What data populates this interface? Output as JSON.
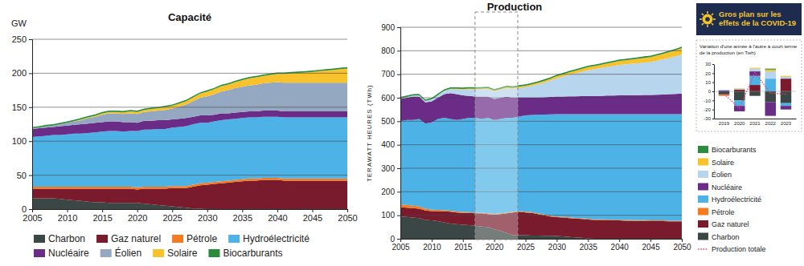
{
  "chart_data": [
    {
      "type": "area",
      "stacked": true,
      "title": "Capacité",
      "ylabel": "GW",
      "x": [
        2005,
        2006,
        2007,
        2008,
        2009,
        2010,
        2011,
        2012,
        2013,
        2014,
        2015,
        2016,
        2017,
        2018,
        2019,
        2020,
        2021,
        2022,
        2023,
        2024,
        2025,
        2026,
        2027,
        2028,
        2029,
        2030,
        2031,
        2032,
        2033,
        2034,
        2035,
        2036,
        2037,
        2038,
        2039,
        2040,
        2041,
        2042,
        2043,
        2044,
        2045,
        2046,
        2047,
        2048,
        2049,
        2050
      ],
      "xlim": [
        2005,
        2050
      ],
      "xticks": [
        2005,
        2010,
        2015,
        2020,
        2025,
        2030,
        2035,
        2040,
        2045,
        2050
      ],
      "ylim": [
        0,
        250
      ],
      "yticks": [
        0,
        50,
        100,
        150,
        200,
        250
      ],
      "grid": true,
      "legend": "bottom",
      "series": [
        {
          "name": "Charbon",
          "color": "#3b4744",
          "values": [
            16,
            16,
            16,
            16,
            15,
            14,
            13,
            12,
            11,
            10,
            10,
            9,
            9,
            9,
            9,
            9,
            8,
            7,
            6,
            5,
            4,
            3,
            2,
            1,
            0.5,
            0,
            0,
            0,
            0,
            0,
            0,
            0,
            0,
            0,
            0,
            0,
            0,
            0,
            0,
            0,
            0,
            0,
            0,
            0,
            0,
            0
          ]
        },
        {
          "name": "Gaz naturel",
          "color": "#7a1b2d",
          "values": [
            14,
            14,
            14,
            14,
            15,
            16,
            17,
            18,
            19,
            20,
            20,
            21,
            21,
            21,
            21,
            20,
            22,
            23,
            24,
            25,
            27,
            28,
            29,
            32,
            34.5,
            36,
            37,
            38,
            39,
            40,
            41,
            42,
            42,
            43,
            43,
            43,
            42,
            42,
            42,
            42,
            42,
            42,
            42,
            42,
            42,
            42
          ]
        },
        {
          "name": "Pétrole",
          "color": "#f47b20",
          "values": [
            3,
            3,
            3,
            3,
            3,
            3,
            3,
            3,
            3,
            3,
            3,
            3,
            3,
            3,
            3,
            3,
            3,
            3,
            3,
            3,
            3,
            3,
            3,
            3,
            3,
            3,
            3,
            3,
            3,
            3,
            3,
            3,
            3,
            3,
            3,
            3,
            3,
            3,
            3,
            3,
            3,
            3,
            3,
            3,
            3,
            3
          ]
        },
        {
          "name": "Hydroélectricité",
          "color": "#4db3e6",
          "values": [
            73,
            74,
            75,
            76,
            76,
            77,
            78,
            78,
            79,
            80,
            81,
            82,
            82,
            81,
            82,
            83,
            84,
            84,
            85,
            85,
            86,
            87,
            88,
            89,
            89,
            88,
            89,
            90,
            90,
            90,
            90,
            90,
            90,
            90,
            90,
            90,
            90,
            90,
            90,
            90,
            90,
            90,
            90,
            90,
            90,
            90
          ]
        },
        {
          "name": "Nucléaire",
          "color": "#6a2c87",
          "values": [
            12,
            12,
            12,
            12,
            13,
            13,
            13,
            14,
            14,
            14,
            14,
            14,
            14,
            14,
            13,
            12,
            13,
            13,
            13,
            13,
            12,
            12,
            12,
            11,
            11,
            11,
            10,
            10,
            9,
            9,
            9,
            9,
            9,
            9,
            9,
            9,
            9,
            9,
            9,
            9,
            9,
            9,
            9,
            9,
            9,
            9
          ]
        },
        {
          "name": "Éolien",
          "color": "#95a8c2",
          "values": [
            1,
            1,
            2,
            2,
            3,
            4,
            5,
            6,
            8,
            9,
            11,
            12,
            12,
            12,
            13,
            13,
            13,
            14,
            14,
            15,
            16,
            18,
            20,
            23,
            26,
            28,
            30,
            32,
            34,
            36,
            37,
            38,
            39,
            40,
            41,
            42,
            42,
            42,
            42,
            42,
            42,
            42,
            42,
            42,
            42,
            42
          ]
        },
        {
          "name": "Solaire",
          "color": "#f8c22d",
          "values": [
            0,
            0,
            0,
            0,
            0,
            0,
            0.5,
            1,
            1,
            1.5,
            2,
            2,
            2,
            2.5,
            3,
            3,
            3,
            3.5,
            3.5,
            4,
            4,
            4.5,
            5,
            5.5,
            6,
            7,
            7.5,
            8,
            8.5,
            9,
            10,
            10.5,
            11,
            11,
            11.5,
            12,
            13,
            14,
            14.5,
            15,
            16,
            17,
            18,
            19,
            20,
            21
          ]
        },
        {
          "name": "Biocarburants",
          "color": "#2b8c3c",
          "values": [
            2,
            2,
            2,
            2,
            2,
            2,
            2,
            2,
            2,
            2,
            2,
            2,
            2,
            2,
            2,
            2,
            2,
            2,
            2,
            2,
            2,
            2,
            2,
            2,
            2,
            2,
            2,
            2,
            2,
            2,
            2,
            2,
            2,
            2,
            2,
            2,
            2,
            2,
            2,
            2,
            2,
            2,
            2,
            2,
            2,
            2
          ]
        }
      ]
    },
    {
      "type": "area",
      "stacked": true,
      "title": "Production",
      "ylabel": "TERAWATT HEURES (TWh)",
      "x": [
        2005,
        2006,
        2007,
        2008,
        2009,
        2010,
        2011,
        2012,
        2013,
        2014,
        2015,
        2016,
        2017,
        2018,
        2019,
        2020,
        2021,
        2022,
        2023,
        2024,
        2025,
        2026,
        2027,
        2028,
        2029,
        2030,
        2031,
        2032,
        2033,
        2034,
        2035,
        2036,
        2037,
        2038,
        2039,
        2040,
        2041,
        2042,
        2043,
        2044,
        2045,
        2046,
        2047,
        2048,
        2049,
        2050
      ],
      "xlim": [
        2005,
        2050
      ],
      "xticks": [
        2005,
        2010,
        2015,
        2020,
        2025,
        2030,
        2035,
        2040,
        2045,
        2050
      ],
      "ylim": [
        0,
        900
      ],
      "yticks": [
        0,
        100,
        200,
        300,
        400,
        500,
        600,
        700,
        800,
        900
      ],
      "grid": true,
      "legend": "right",
      "series": [
        {
          "name": "Charbon",
          "color": "#3b4744",
          "values": [
            95,
            93,
            90,
            88,
            80,
            78,
            75,
            70,
            65,
            62,
            60,
            58,
            55,
            52,
            50,
            40,
            35,
            25,
            15,
            15,
            15,
            14,
            14,
            13,
            13,
            12,
            10,
            8,
            6,
            4,
            2,
            0,
            0,
            0,
            0,
            0,
            0,
            0,
            0,
            0,
            0,
            0,
            0,
            0,
            0,
            0
          ]
        },
        {
          "name": "Gaz naturel",
          "color": "#7a1b2d",
          "values": [
            40,
            39,
            40,
            40,
            40,
            40,
            43,
            47,
            50,
            50,
            50,
            52,
            53,
            56,
            55,
            63,
            70,
            83,
            97,
            100,
            97,
            96,
            91,
            87,
            82,
            80,
            80,
            80,
            80,
            80,
            80,
            80,
            80,
            79,
            78,
            78,
            77,
            77,
            76,
            76,
            75,
            75,
            75,
            74,
            74,
            74
          ]
        },
        {
          "name": "Pétrole",
          "color": "#f47b20",
          "values": [
            12,
            12,
            11,
            10,
            8,
            6,
            5,
            5,
            4,
            4,
            4,
            3,
            3,
            3,
            3,
            3,
            3,
            3,
            3,
            3,
            3,
            3,
            3,
            3,
            3,
            3,
            3,
            3,
            3,
            3,
            3,
            3,
            3,
            3,
            3,
            3,
            3,
            3,
            3,
            3,
            3,
            3,
            3,
            3,
            3,
            3
          ]
        },
        {
          "name": "Hydroélectricité",
          "color": "#4db3e6",
          "values": [
            353,
            361,
            364,
            372,
            362,
            371,
            387,
            393,
            391,
            389,
            396,
            402,
            404,
            399,
            407,
            399,
            402,
            404,
            400,
            402,
            410,
            414,
            420,
            425,
            431,
            435,
            437,
            439,
            441,
            443,
            445,
            447,
            447,
            448,
            449,
            449,
            450,
            450,
            451,
            451,
            452,
            452,
            452,
            453,
            453,
            453
          ]
        },
        {
          "name": "Nucléaire",
          "color": "#6a2c87",
          "values": [
            95,
            95,
            100,
            95,
            90,
            90,
            90,
            100,
            110,
            110,
            100,
            93,
            90,
            95,
            90,
            90,
            90,
            90,
            85,
            80,
            75,
            73,
            73,
            74,
            74,
            75,
            75,
            76,
            76,
            77,
            77,
            78,
            78,
            79,
            79,
            80,
            80,
            81,
            81,
            82,
            82,
            83,
            84,
            85,
            86,
            88
          ]
        },
        {
          "name": "Éolien",
          "color": "#b8d5ee",
          "values": [
            2,
            3,
            4,
            5,
            6,
            8,
            11,
            14,
            17,
            21,
            25,
            28,
            30,
            31,
            32,
            32,
            33,
            35,
            38,
            42,
            45,
            50,
            56,
            62,
            70,
            78,
            85,
            92,
            98,
            104,
            110,
            114,
            118,
            122,
            126,
            130,
            132,
            134,
            136,
            138,
            140,
            145,
            150,
            155,
            160,
            165
          ]
        },
        {
          "name": "Solaire",
          "color": "#f8c22d",
          "values": [
            0,
            0,
            0,
            0,
            0,
            0,
            0.5,
            1,
            1.5,
            2,
            2.5,
            3,
            3,
            3.5,
            4,
            4,
            4.5,
            5,
            5,
            6,
            6,
            7,
            7,
            8,
            8,
            9,
            10,
            10,
            11,
            12,
            13,
            13,
            14,
            15,
            16,
            17,
            17,
            18,
            19,
            20,
            21,
            22,
            23,
            24,
            26,
            28
          ]
        },
        {
          "name": "Biocarburants",
          "color": "#2b8c3c",
          "values": [
            6,
            6,
            6,
            6,
            6,
            6,
            6,
            6,
            6,
            6,
            6,
            6,
            6,
            6,
            6,
            6,
            6,
            6,
            6,
            6,
            6,
            6,
            6,
            6,
            6,
            6,
            6,
            6,
            6,
            6,
            6,
            6,
            6,
            6,
            6,
            6,
            6,
            6,
            6,
            6,
            6,
            6,
            6,
            6,
            6,
            6
          ]
        }
      ]
    },
    {
      "type": "bar",
      "stacked": true,
      "title": "Gros plan sur les effets de la COVID-19",
      "subtitle": "Variation d'une année à l'autre à court terme de la production (en Twh)",
      "categories": [
        "2019",
        "2020",
        "2021",
        "2022",
        "2023"
      ],
      "ylim": [
        -30,
        30
      ],
      "yticks": [
        -30,
        -20,
        -10,
        0,
        10,
        20,
        30
      ],
      "series": [
        {
          "name": "Charbon",
          "color": "#3b4744",
          "values": [
            -3,
            -10,
            -5,
            -12,
            -13
          ]
        },
        {
          "name": "Gaz naturel",
          "color": "#7a1b2d",
          "values": [
            -1,
            2,
            7,
            0,
            14
          ]
        },
        {
          "name": "Pétrole",
          "color": "#f47b20",
          "values": [
            -1,
            0,
            0,
            0,
            0
          ]
        },
        {
          "name": "Hydroélectricité",
          "color": "#4db3e6",
          "values": [
            0,
            -6,
            10,
            14,
            -3
          ]
        },
        {
          "name": "Nucléaire",
          "color": "#6a2c87",
          "values": [
            1,
            -6,
            5,
            -15,
            -4
          ]
        },
        {
          "name": "Éolien",
          "color": "#b8d5ee",
          "values": [
            1,
            1,
            3,
            8,
            2
          ]
        },
        {
          "name": "Solaire",
          "color": "#f8c22d",
          "values": [
            0,
            0.5,
            1,
            2,
            1
          ]
        },
        {
          "name": "Biocarburants",
          "color": "#2b8c3c",
          "values": [
            0,
            0,
            0,
            1,
            0
          ]
        },
        {
          "name": "Production totale",
          "type": "line",
          "line_style": "dotted",
          "color": "#e8467c",
          "values": [
            -3,
            -18.5,
            21,
            -2,
            -3
          ]
        }
      ]
    }
  ]
}
